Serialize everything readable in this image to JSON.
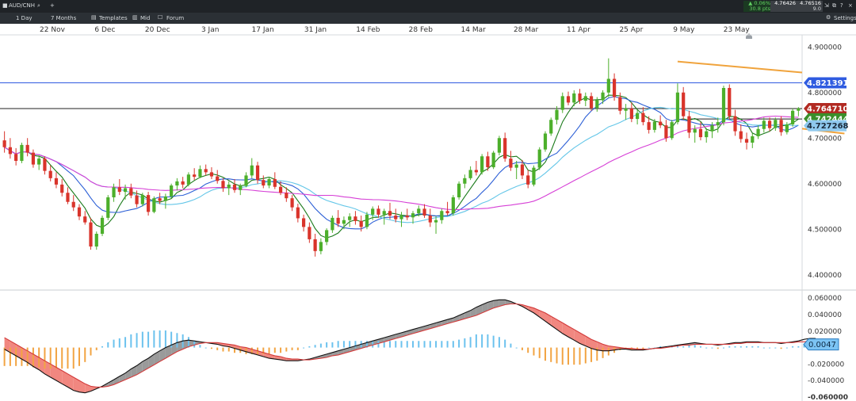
{
  "app": {
    "symbol": "AUD/CNH",
    "add_symbol": "+",
    "change_pct": "▲ 0.06%",
    "change_pts": "30.8 pts",
    "bid": "4.76426",
    "ask": "4.76516",
    "spread": "9.0",
    "settings_label": "Settings"
  },
  "toolbar": {
    "interval": "1 Day",
    "range": "7 Months",
    "templates": "Templates",
    "mid": "Mid",
    "forum": "Forum"
  },
  "colors": {
    "up": "#4caf2b",
    "down": "#d9342b",
    "channel": "#f0a33c",
    "hline": "#2f5be0",
    "macd_up": "#6cc2ee",
    "macd_down": "#f2a443",
    "ma_dark": "#1a7a1a",
    "ma_blue": "#2c5fd6",
    "ma_cyan": "#63c6e8",
    "ma_magenta": "#d63fd6"
  },
  "chart_data": {
    "type": "candlestick",
    "x_labels": [
      "22 Nov",
      "6 Dec",
      "20 Dec",
      "3 Jan",
      "17 Jan",
      "31 Jan",
      "14 Feb",
      "28 Feb",
      "14 Mar",
      "28 Mar",
      "11 Apr",
      "25 Apr",
      "9 May",
      "23 May"
    ],
    "price_axis": {
      "ticks": [
        "4.900000",
        "4.800000",
        "4.700000",
        "4.600000",
        "4.500000",
        "4.400000"
      ],
      "range": [
        4.37,
        4.93
      ]
    },
    "price_labels": [
      {
        "value": 4.821391,
        "text": "4.821391",
        "color": "#2f5be0",
        "text_color": "#ffffff"
      },
      {
        "value": 4.76471,
        "text": "4.764710",
        "color": "#b22a22",
        "text_color": "#ffffff"
      },
      {
        "value": 4.742444,
        "text": "4.742444",
        "color": "#3a8f2a",
        "text_color": "#ffffff"
      },
      {
        "value": 4.727268,
        "text": "4.727268",
        "color": "#8fc9ee",
        "text_color": "#1a2a3a"
      }
    ],
    "horizontal_lines": [
      {
        "value": 4.821391,
        "color": "#2f5be0"
      },
      {
        "value": 4.76471,
        "color": "#222222"
      }
    ],
    "channel": {
      "upper": {
        "start": [
          117,
          4.868
        ],
        "end": [
          199,
          4.777
        ]
      },
      "lower": {
        "start": [
          146,
          4.71
        ],
        "end": [
          199,
          4.633
        ]
      }
    },
    "candles": [
      [
        4.695,
        4.715,
        4.668,
        4.68
      ],
      [
        4.68,
        4.7,
        4.655,
        4.665
      ],
      [
        4.665,
        4.678,
        4.64,
        4.65
      ],
      [
        4.65,
        4.69,
        4.645,
        4.685
      ],
      [
        4.685,
        4.7,
        4.66,
        4.668
      ],
      [
        4.668,
        4.675,
        4.635,
        4.642
      ],
      [
        4.642,
        4.662,
        4.63,
        4.655
      ],
      [
        4.655,
        4.66,
        4.62,
        4.628
      ],
      [
        4.628,
        4.64,
        4.605,
        4.612
      ],
      [
        4.612,
        4.625,
        4.59,
        4.598
      ],
      [
        4.598,
        4.61,
        4.572,
        4.58
      ],
      [
        4.58,
        4.592,
        4.555,
        4.56
      ],
      [
        4.56,
        4.575,
        4.54,
        4.548
      ],
      [
        4.548,
        4.555,
        4.52,
        4.528
      ],
      [
        4.528,
        4.54,
        4.51,
        4.515
      ],
      [
        4.515,
        4.525,
        4.455,
        4.462
      ],
      [
        4.462,
        4.495,
        4.455,
        4.49
      ],
      [
        4.49,
        4.53,
        4.485,
        4.525
      ],
      [
        4.525,
        4.575,
        4.52,
        4.57
      ],
      [
        4.57,
        4.6,
        4.56,
        4.592
      ],
      [
        4.592,
        4.61,
        4.575,
        4.582
      ],
      [
        4.582,
        4.598,
        4.565,
        4.59
      ],
      [
        4.59,
        4.6,
        4.568,
        4.574
      ],
      [
        4.574,
        4.585,
        4.548,
        4.555
      ],
      [
        4.555,
        4.58,
        4.55,
        4.575
      ],
      [
        4.575,
        4.582,
        4.53,
        4.538
      ],
      [
        4.538,
        4.572,
        4.535,
        4.568
      ],
      [
        4.568,
        4.58,
        4.555,
        4.562
      ],
      [
        4.562,
        4.578,
        4.545,
        4.572
      ],
      [
        4.572,
        4.6,
        4.568,
        4.596
      ],
      [
        4.596,
        4.612,
        4.585,
        4.605
      ],
      [
        4.605,
        4.615,
        4.59,
        4.598
      ],
      [
        4.598,
        4.625,
        4.594,
        4.62
      ],
      [
        4.62,
        4.634,
        4.608,
        4.615
      ],
      [
        4.615,
        4.64,
        4.612,
        4.632
      ],
      [
        4.632,
        4.642,
        4.618,
        4.625
      ],
      [
        4.625,
        4.636,
        4.61,
        4.616
      ],
      [
        4.616,
        4.63,
        4.6,
        4.606
      ],
      [
        4.606,
        4.612,
        4.582,
        4.59
      ],
      [
        4.59,
        4.605,
        4.575,
        4.598
      ],
      [
        4.598,
        4.61,
        4.58,
        4.586
      ],
      [
        4.586,
        4.6,
        4.575,
        4.595
      ],
      [
        4.595,
        4.625,
        4.592,
        4.618
      ],
      [
        4.618,
        4.656,
        4.612,
        4.64
      ],
      [
        4.64,
        4.648,
        4.6,
        4.608
      ],
      [
        4.608,
        4.618,
        4.59,
        4.596
      ],
      [
        4.596,
        4.615,
        4.59,
        4.61
      ],
      [
        4.61,
        4.625,
        4.588,
        4.593
      ],
      [
        4.593,
        4.605,
        4.575,
        4.58
      ],
      [
        4.58,
        4.592,
        4.56,
        4.568
      ],
      [
        4.568,
        4.575,
        4.54,
        4.548
      ],
      [
        4.548,
        4.556,
        4.515,
        4.524
      ],
      [
        4.524,
        4.532,
        4.495,
        4.505
      ],
      [
        4.505,
        4.515,
        4.47,
        4.478
      ],
      [
        4.478,
        4.49,
        4.44,
        4.452
      ],
      [
        4.452,
        4.48,
        4.445,
        4.472
      ],
      [
        4.472,
        4.502,
        4.465,
        4.498
      ],
      [
        4.498,
        4.53,
        4.492,
        4.525
      ],
      [
        4.525,
        4.542,
        4.505,
        4.512
      ],
      [
        4.512,
        4.528,
        4.5,
        4.52
      ],
      [
        4.52,
        4.535,
        4.505,
        4.528
      ],
      [
        4.528,
        4.54,
        4.51,
        4.518
      ],
      [
        4.518,
        4.53,
        4.495,
        4.505
      ],
      [
        4.505,
        4.538,
        4.5,
        4.532
      ],
      [
        4.532,
        4.55,
        4.52,
        4.545
      ],
      [
        4.545,
        4.552,
        4.525,
        4.532
      ],
      [
        4.532,
        4.545,
        4.51,
        4.54
      ],
      [
        4.54,
        4.558,
        4.522,
        4.53
      ],
      [
        4.53,
        4.545,
        4.515,
        4.522
      ],
      [
        4.522,
        4.538,
        4.505,
        4.53
      ],
      [
        4.53,
        4.545,
        4.52,
        4.526
      ],
      [
        4.526,
        4.54,
        4.512,
        4.535
      ],
      [
        4.535,
        4.552,
        4.528,
        4.545
      ],
      [
        4.545,
        4.555,
        4.525,
        4.53
      ],
      [
        4.53,
        4.545,
        4.505,
        4.515
      ],
      [
        4.515,
        4.528,
        4.49,
        4.52
      ],
      [
        4.52,
        4.545,
        4.512,
        4.54
      ],
      [
        4.54,
        4.56,
        4.53,
        4.535
      ],
      [
        4.535,
        4.575,
        4.53,
        4.57
      ],
      [
        4.57,
        4.605,
        4.565,
        4.6
      ],
      [
        4.6,
        4.62,
        4.59,
        4.612
      ],
      [
        4.612,
        4.638,
        4.608,
        4.63
      ],
      [
        4.63,
        4.65,
        4.618,
        4.625
      ],
      [
        4.625,
        4.665,
        4.62,
        4.66
      ],
      [
        4.66,
        4.67,
        4.628,
        4.636
      ],
      [
        4.636,
        4.672,
        4.632,
        4.668
      ],
      [
        4.668,
        4.705,
        4.662,
        4.7
      ],
      [
        4.7,
        4.712,
        4.648,
        4.655
      ],
      [
        4.655,
        4.672,
        4.628,
        4.635
      ],
      [
        4.635,
        4.65,
        4.61,
        4.642
      ],
      [
        4.642,
        4.652,
        4.61,
        4.618
      ],
      [
        4.618,
        4.63,
        4.59,
        4.598
      ],
      [
        4.598,
        4.64,
        4.594,
        4.635
      ],
      [
        4.635,
        4.68,
        4.63,
        4.675
      ],
      [
        4.675,
        4.715,
        4.67,
        4.71
      ],
      [
        4.71,
        4.745,
        4.705,
        4.74
      ],
      [
        4.74,
        4.77,
        4.73,
        4.762
      ],
      [
        4.762,
        4.8,
        4.755,
        4.792
      ],
      [
        4.792,
        4.802,
        4.772,
        4.778
      ],
      [
        4.778,
        4.805,
        4.77,
        4.798
      ],
      [
        4.798,
        4.808,
        4.775,
        4.782
      ],
      [
        4.782,
        4.8,
        4.77,
        4.792
      ],
      [
        4.792,
        4.8,
        4.76,
        4.766
      ],
      [
        4.766,
        4.79,
        4.758,
        4.783
      ],
      [
        4.783,
        4.805,
        4.775,
        4.8
      ],
      [
        4.8,
        4.875,
        4.79,
        4.83
      ],
      [
        4.83,
        4.842,
        4.782,
        4.79
      ],
      [
        4.79,
        4.8,
        4.752,
        4.76
      ],
      [
        4.76,
        4.775,
        4.74,
        4.765
      ],
      [
        4.765,
        4.778,
        4.735,
        4.742
      ],
      [
        4.742,
        4.762,
        4.73,
        4.755
      ],
      [
        4.755,
        4.768,
        4.728,
        4.735
      ],
      [
        4.735,
        4.748,
        4.71,
        4.718
      ],
      [
        4.718,
        4.742,
        4.712,
        4.736
      ],
      [
        4.736,
        4.75,
        4.722,
        4.728
      ],
      [
        4.728,
        4.74,
        4.692,
        4.7
      ],
      [
        4.7,
        4.74,
        4.696,
        4.735
      ],
      [
        4.735,
        4.82,
        4.73,
        4.8
      ],
      [
        4.8,
        4.812,
        4.74,
        4.748
      ],
      [
        4.748,
        4.76,
        4.7,
        4.712
      ],
      [
        4.712,
        4.728,
        4.69,
        4.72
      ],
      [
        4.72,
        4.735,
        4.695,
        4.702
      ],
      [
        4.702,
        4.722,
        4.69,
        4.715
      ],
      [
        4.715,
        4.735,
        4.7,
        4.728
      ],
      [
        4.728,
        4.745,
        4.712,
        4.735
      ],
      [
        4.735,
        4.815,
        4.728,
        4.81
      ],
      [
        4.81,
        4.818,
        4.74,
        4.748
      ],
      [
        4.748,
        4.762,
        4.705,
        4.715
      ],
      [
        4.715,
        4.73,
        4.69,
        4.698
      ],
      [
        4.698,
        4.712,
        4.675,
        4.69
      ],
      [
        4.69,
        4.71,
        4.678,
        4.704
      ],
      [
        4.704,
        4.728,
        4.698,
        4.72
      ],
      [
        4.72,
        4.745,
        4.712,
        4.738
      ],
      [
        4.738,
        4.745,
        4.715,
        4.722
      ],
      [
        4.722,
        4.745,
        4.716,
        4.74
      ],
      [
        4.74,
        4.748,
        4.705,
        4.713
      ],
      [
        4.713,
        4.735,
        4.708,
        4.73
      ],
      [
        4.73,
        4.765,
        4.725,
        4.76
      ],
      [
        4.76,
        4.768,
        4.748,
        4.765
      ]
    ],
    "macd_axis": {
      "ticks": [
        "0.060000",
        "0.040000",
        "0.020000",
        "0",
        "-0.020000",
        "-0.040000",
        "-0.060000"
      ],
      "range": [
        -0.063,
        0.066
      ]
    },
    "macd_label": {
      "value": 0.0047,
      "text": "0.0047",
      "color": "#3a9be0",
      "text_color": "#0d2a45"
    },
    "macd": [
      -0.002,
      -0.006,
      -0.01,
      -0.014,
      -0.018,
      -0.023,
      -0.027,
      -0.032,
      -0.036,
      -0.04,
      -0.044,
      -0.048,
      -0.052,
      -0.054,
      -0.055,
      -0.053,
      -0.05,
      -0.047,
      -0.043,
      -0.039,
      -0.035,
      -0.031,
      -0.026,
      -0.022,
      -0.017,
      -0.013,
      -0.008,
      -0.004,
      0.0,
      0.003,
      0.006,
      0.008,
      0.009,
      0.008,
      0.007,
      0.006,
      0.005,
      0.004,
      0.002,
      0.001,
      -0.001,
      -0.003,
      -0.005,
      -0.007,
      -0.009,
      -0.011,
      -0.013,
      -0.014,
      -0.015,
      -0.016,
      -0.016,
      -0.016,
      -0.015,
      -0.014,
      -0.012,
      -0.01,
      -0.008,
      -0.006,
      -0.004,
      -0.002,
      0.0,
      0.002,
      0.004,
      0.006,
      0.008,
      0.01,
      0.012,
      0.014,
      0.016,
      0.018,
      0.02,
      0.022,
      0.024,
      0.026,
      0.028,
      0.03,
      0.032,
      0.034,
      0.036,
      0.039,
      0.042,
      0.045,
      0.049,
      0.052,
      0.055,
      0.057,
      0.058,
      0.058,
      0.056,
      0.053,
      0.05,
      0.046,
      0.042,
      0.037,
      0.032,
      0.027,
      0.022,
      0.017,
      0.013,
      0.009,
      0.005,
      0.002,
      -0.001,
      -0.003,
      -0.004,
      -0.004,
      -0.003,
      -0.002,
      -0.002,
      -0.003,
      -0.003,
      -0.003,
      -0.002,
      -0.001,
      0.0,
      0.001,
      0.002,
      0.003,
      0.004,
      0.005,
      0.006,
      0.005,
      0.004,
      0.004,
      0.003,
      0.004,
      0.005,
      0.006,
      0.006,
      0.007,
      0.007,
      0.007,
      0.006,
      0.006,
      0.006,
      0.005,
      0.006,
      0.007,
      0.008,
      0.01,
      0.011,
      0.011
    ],
    "signal": [
      0.012,
      0.008,
      0.004,
      0.0,
      -0.004,
      -0.008,
      -0.012,
      -0.016,
      -0.02,
      -0.024,
      -0.028,
      -0.032,
      -0.036,
      -0.04,
      -0.044,
      -0.047,
      -0.048,
      -0.048,
      -0.047,
      -0.045,
      -0.042,
      -0.039,
      -0.036,
      -0.033,
      -0.029,
      -0.025,
      -0.021,
      -0.017,
      -0.013,
      -0.009,
      -0.005,
      -0.002,
      0.001,
      0.003,
      0.005,
      0.006,
      0.006,
      0.006,
      0.005,
      0.004,
      0.003,
      0.001,
      0.0,
      -0.002,
      -0.004,
      -0.006,
      -0.008,
      -0.01,
      -0.011,
      -0.013,
      -0.014,
      -0.014,
      -0.015,
      -0.015,
      -0.014,
      -0.013,
      -0.012,
      -0.01,
      -0.009,
      -0.007,
      -0.005,
      -0.003,
      -0.001,
      0.001,
      0.003,
      0.005,
      0.007,
      0.009,
      0.011,
      0.013,
      0.015,
      0.017,
      0.019,
      0.021,
      0.023,
      0.025,
      0.027,
      0.029,
      0.031,
      0.033,
      0.035,
      0.037,
      0.039,
      0.042,
      0.045,
      0.048,
      0.05,
      0.052,
      0.053,
      0.053,
      0.052,
      0.05,
      0.048,
      0.045,
      0.042,
      0.038,
      0.034,
      0.03,
      0.026,
      0.022,
      0.018,
      0.014,
      0.01,
      0.007,
      0.004,
      0.002,
      0.001,
      0.0,
      -0.001,
      -0.001,
      -0.002,
      -0.002,
      -0.002,
      -0.001,
      -0.001,
      0.0,
      0.001,
      0.002,
      0.003,
      0.003,
      0.004,
      0.004,
      0.004,
      0.004,
      0.004,
      0.004,
      0.004,
      0.005,
      0.005,
      0.006,
      0.006,
      0.006,
      0.006,
      0.006,
      0.006,
      0.006,
      0.006,
      0.006,
      0.007,
      0.007,
      0.008,
      0.008
    ]
  }
}
